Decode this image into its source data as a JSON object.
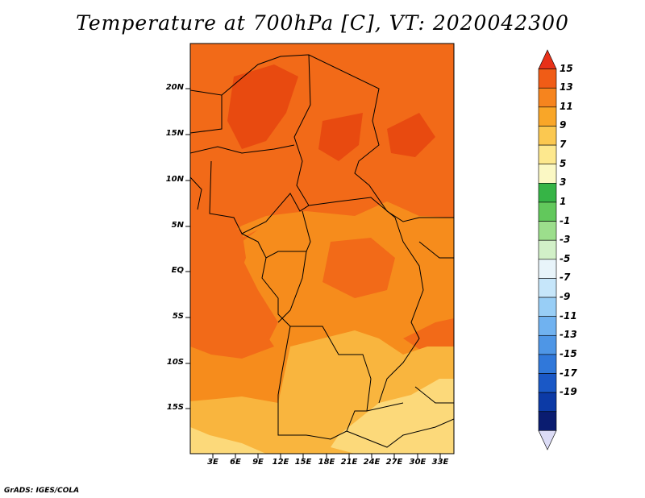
{
  "title": "Temperature at 700hPa [C], VT: 2020042300",
  "credit": "GrADS: IGES/COLA",
  "map": {
    "lat_labels": [
      "20N",
      "15N",
      "10N",
      "5N",
      "EQ",
      "5S",
      "10S",
      "15S"
    ],
    "lon_labels": [
      "3E",
      "6E",
      "9E",
      "12E",
      "15E",
      "18E",
      "21E",
      "24E",
      "27E",
      "30E",
      "33E"
    ],
    "field_colors": {
      "c13_15": "#e84a10",
      "c11_13": "#f26a18",
      "c9_11": "#f68c1c",
      "c7_9": "#f9b53e",
      "c5_7": "#fcd97a"
    }
  },
  "colorbar": {
    "labels": [
      "15",
      "13",
      "11",
      "9",
      "7",
      "5",
      "3",
      "1",
      "-1",
      "-3",
      "-5",
      "-7",
      "-9",
      "-11",
      "-13",
      "-15",
      "-17",
      "-19"
    ],
    "colors": [
      "#e83018",
      "#f05c16",
      "#f6841e",
      "#f9a628",
      "#fbc850",
      "#fde88e",
      "#fbf8c4",
      "#36b446",
      "#62c85c",
      "#9cde8c",
      "#d2f0c8",
      "#e8f4fa",
      "#c6e6fa",
      "#98cef6",
      "#70b2f0",
      "#4e96e6",
      "#3078da",
      "#1a58c6",
      "#0c3aa6",
      "#0a1c70",
      "#dcdcf6"
    ]
  }
}
